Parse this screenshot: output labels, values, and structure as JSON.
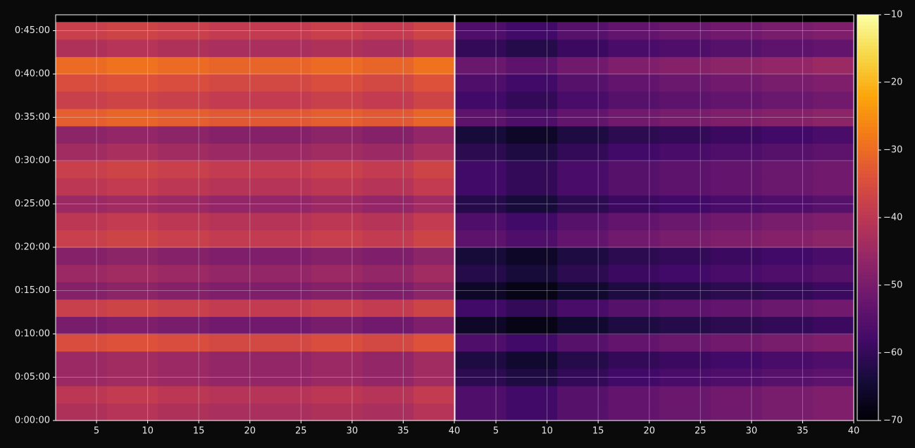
{
  "chart_data": {
    "type": "heatmap",
    "colormap": "inferno",
    "clim": [
      -70,
      -10
    ],
    "cticks": [
      {
        "value": -70,
        "label": "−70"
      },
      {
        "value": -60,
        "label": "−60"
      },
      {
        "value": -50,
        "label": "−50"
      },
      {
        "value": -40,
        "label": "−40"
      },
      {
        "value": -30,
        "label": "−30"
      },
      {
        "value": -20,
        "label": "−20"
      },
      {
        "value": -10,
        "label": "−10"
      }
    ],
    "grid": true,
    "ylim": [
      0,
      2810
    ],
    "yticks": [
      {
        "value": 0,
        "label": "0:00:00"
      },
      {
        "value": 300,
        "label": "0:05:00"
      },
      {
        "value": 600,
        "label": "0:10:00"
      },
      {
        "value": 900,
        "label": "0:15:00"
      },
      {
        "value": 1200,
        "label": "0:20:00"
      },
      {
        "value": 1500,
        "label": "0:25:00"
      },
      {
        "value": 1800,
        "label": "0:30:00"
      },
      {
        "value": 2100,
        "label": "0:35:00"
      },
      {
        "value": 2400,
        "label": "0:40:00"
      },
      {
        "value": 2700,
        "label": "0:45:00"
      }
    ],
    "y_bins": [
      0,
      120,
      240,
      360,
      480,
      600,
      720,
      840,
      960,
      1080,
      1200,
      1320,
      1440,
      1560,
      1680,
      1800,
      1920,
      2040,
      2160,
      2280,
      2400,
      2520,
      2640,
      2760
    ],
    "panels": [
      {
        "xlim": [
          1,
          40
        ],
        "xticks": [
          5,
          10,
          15,
          20,
          25,
          30,
          35,
          40
        ],
        "x_bins": [
          1,
          6,
          11,
          16,
          21,
          26,
          31,
          36,
          40
        ],
        "z": [
          [
            -42,
            -41,
            -42,
            -43,
            -43,
            -42,
            -43,
            -41
          ],
          [
            -40,
            -39,
            -40,
            -41,
            -41,
            -40,
            -41,
            -39
          ],
          [
            -45,
            -44,
            -45,
            -46,
            -46,
            -45,
            -46,
            -44
          ],
          [
            -45,
            -44,
            -45,
            -46,
            -46,
            -45,
            -46,
            -44
          ],
          [
            -35,
            -34,
            -35,
            -36,
            -36,
            -35,
            -36,
            -34
          ],
          [
            -50,
            -49,
            -50,
            -51,
            -51,
            -50,
            -51,
            -49
          ],
          [
            -38,
            -37,
            -38,
            -39,
            -39,
            -38,
            -39,
            -37
          ],
          [
            -48,
            -47,
            -48,
            -49,
            -49,
            -48,
            -49,
            -47
          ],
          [
            -45,
            -44,
            -45,
            -46,
            -46,
            -45,
            -46,
            -44
          ],
          [
            -48,
            -47,
            -48,
            -49,
            -49,
            -48,
            -49,
            -47
          ],
          [
            -38,
            -37,
            -38,
            -39,
            -39,
            -38,
            -39,
            -37
          ],
          [
            -40,
            -39,
            -40,
            -41,
            -41,
            -40,
            -41,
            -39
          ],
          [
            -45,
            -44,
            -45,
            -46,
            -46,
            -45,
            -46,
            -44
          ],
          [
            -40,
            -39,
            -40,
            -41,
            -41,
            -40,
            -41,
            -39
          ],
          [
            -38,
            -37,
            -38,
            -39,
            -39,
            -38,
            -39,
            -37
          ],
          [
            -44,
            -43,
            -44,
            -45,
            -45,
            -44,
            -45,
            -43
          ],
          [
            -47,
            -46,
            -47,
            -48,
            -48,
            -47,
            -48,
            -46
          ],
          [
            -32,
            -31,
            -32,
            -33,
            -33,
            -32,
            -33,
            -31
          ],
          [
            -38,
            -37,
            -38,
            -39,
            -39,
            -38,
            -39,
            -37
          ],
          [
            -35,
            -34,
            -35,
            -36,
            -36,
            -35,
            -36,
            -34
          ],
          [
            -30,
            -29,
            -30,
            -31,
            -31,
            -30,
            -31,
            -29
          ],
          [
            -42,
            -41,
            -42,
            -43,
            -43,
            -42,
            -43,
            -41
          ],
          [
            -38,
            -37,
            -38,
            -39,
            -39,
            -38,
            -39,
            -37
          ]
        ]
      },
      {
        "xlim": [
          1,
          40
        ],
        "xticks": [
          5,
          10,
          15,
          20,
          25,
          30,
          35,
          40
        ],
        "x_bins": [
          1,
          6,
          11,
          16,
          21,
          26,
          31,
          36,
          40
        ],
        "z": [
          [
            -56,
            -58,
            -55,
            -53,
            -52,
            -51,
            -50,
            -49
          ],
          [
            -56,
            -58,
            -55,
            -53,
            -52,
            -51,
            -50,
            -49
          ],
          [
            -61,
            -63,
            -60,
            -58,
            -57,
            -56,
            -55,
            -54
          ],
          [
            -63,
            -65,
            -62,
            -60,
            -59,
            -58,
            -57,
            -56
          ],
          [
            -56,
            -58,
            -55,
            -53,
            -52,
            -51,
            -50,
            -49
          ],
          [
            -66,
            -68,
            -65,
            -63,
            -62,
            -61,
            -60,
            -59
          ],
          [
            -58,
            -60,
            -57,
            -55,
            -54,
            -53,
            -52,
            -51
          ],
          [
            -66,
            -68,
            -65,
            -63,
            -62,
            -61,
            -60,
            -59
          ],
          [
            -62,
            -64,
            -61,
            -59,
            -58,
            -57,
            -56,
            -55
          ],
          [
            -64,
            -66,
            -63,
            -61,
            -60,
            -59,
            -58,
            -57
          ],
          [
            -54,
            -56,
            -53,
            -51,
            -50,
            -49,
            -48,
            -47
          ],
          [
            -56,
            -58,
            -55,
            -53,
            -52,
            -51,
            -50,
            -49
          ],
          [
            -62,
            -64,
            -61,
            -59,
            -58,
            -57,
            -56,
            -55
          ],
          [
            -58,
            -60,
            -57,
            -55,
            -54,
            -53,
            -52,
            -51
          ],
          [
            -58,
            -60,
            -57,
            -55,
            -54,
            -53,
            -52,
            -51
          ],
          [
            -61,
            -63,
            -60,
            -58,
            -57,
            -56,
            -55,
            -54
          ],
          [
            -64,
            -66,
            -63,
            -61,
            -60,
            -59,
            -58,
            -57
          ],
          [
            -54,
            -56,
            -53,
            -51,
            -50,
            -49,
            -48,
            -47
          ],
          [
            -58,
            -60,
            -57,
            -55,
            -54,
            -53,
            -52,
            -51
          ],
          [
            -56,
            -58,
            -55,
            -53,
            -52,
            -51,
            -50,
            -49
          ],
          [
            -52,
            -54,
            -51,
            -49,
            -48,
            -47,
            -46,
            -45
          ],
          [
            -60,
            -62,
            -59,
            -57,
            -56,
            -55,
            -54,
            -53
          ],
          [
            -56,
            -58,
            -55,
            -53,
            -52,
            -51,
            -50,
            -49
          ]
        ]
      }
    ]
  }
}
